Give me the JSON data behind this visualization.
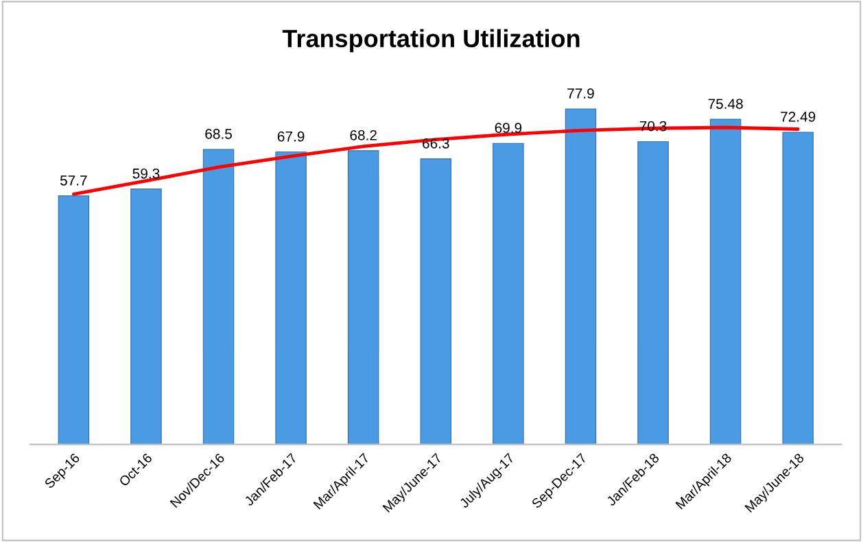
{
  "chart_data": {
    "type": "bar",
    "title": "Transportation Utilization",
    "categories": [
      "Sep-16",
      "Oct-16",
      "Nov/Dec-16",
      "Jan/Feb-17",
      "Mar/April-17",
      "May/June-17",
      "July/Aug-17",
      "Sep-Dec-17",
      "Jan/Feb-18",
      "Mar/April-18",
      "May/June-18"
    ],
    "series": [
      {
        "color": "#4a9be3",
        "values": [
          57.7,
          59.3,
          68.5,
          67.9,
          68.2,
          66.3,
          69.9,
          77.9,
          70.3,
          75.48,
          72.49
        ],
        "value_labels": [
          "57.7",
          "59.3",
          "68.5",
          "67.9",
          "68.2",
          "66.3",
          "69.9",
          "77.9",
          "70.3",
          "75.48",
          "72.49"
        ]
      },
      {
        "type": "line",
        "color": "#ff0000",
        "values": [
          58.1,
          61.2,
          64.4,
          66.9,
          69.2,
          70.8,
          72.0,
          72.9,
          73.4,
          73.6,
          73.2
        ]
      }
    ],
    "tick_labels": "x",
    "grid": false,
    "legend": false
  }
}
